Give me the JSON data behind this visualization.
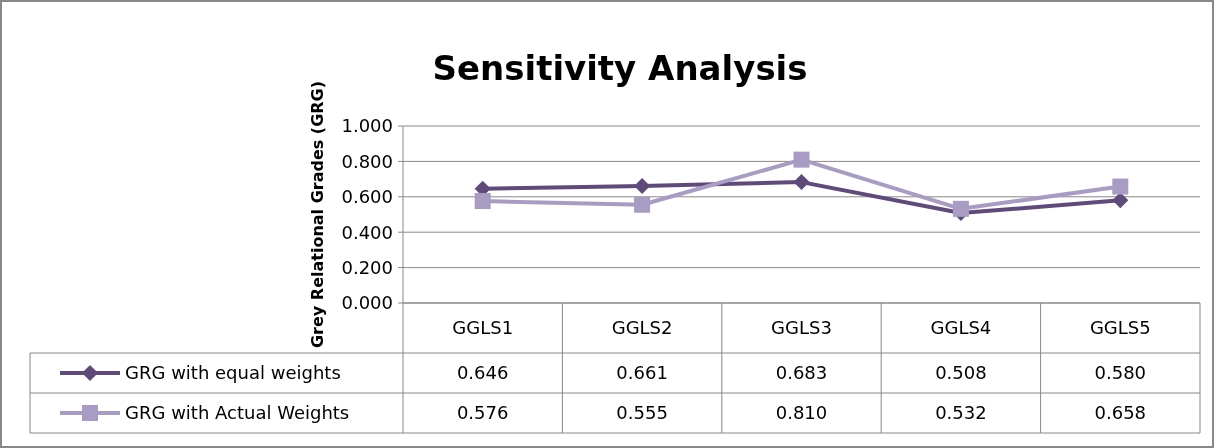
{
  "chart_data": {
    "type": "line",
    "title": "Sensitivity Analysis",
    "ylabel": "Grey Relational Grades (GRG)",
    "categories": [
      "GGLS1",
      "GGLS2",
      "GGLS3",
      "GGLS4",
      "GGLS5"
    ],
    "series": [
      {
        "name": "GRG with equal weights",
        "color": "#604a7b",
        "marker": "diamond",
        "values": [
          0.646,
          0.661,
          0.683,
          0.508,
          0.58
        ],
        "value_labels": [
          "0.646",
          "0.661",
          "0.683",
          "0.508",
          "0.580"
        ]
      },
      {
        "name": "GRG with Actual Weights",
        "color": "#a89cc4",
        "marker": "square",
        "values": [
          0.576,
          0.555,
          0.81,
          0.532,
          0.658
        ],
        "value_labels": [
          "0.576",
          "0.555",
          "0.810",
          "0.532",
          "0.658"
        ]
      }
    ],
    "ylim": [
      0,
      1
    ],
    "yticks": [
      {
        "value": 0,
        "label": "0.000"
      },
      {
        "value": 0.2,
        "label": "0.200"
      },
      {
        "value": 0.4,
        "label": "0.400"
      },
      {
        "value": 0.6,
        "label": "0.600"
      },
      {
        "value": 0.8,
        "label": "0.800"
      },
      {
        "value": 1,
        "label": "1.000"
      }
    ],
    "grid": "y",
    "legend": "bottom left"
  }
}
